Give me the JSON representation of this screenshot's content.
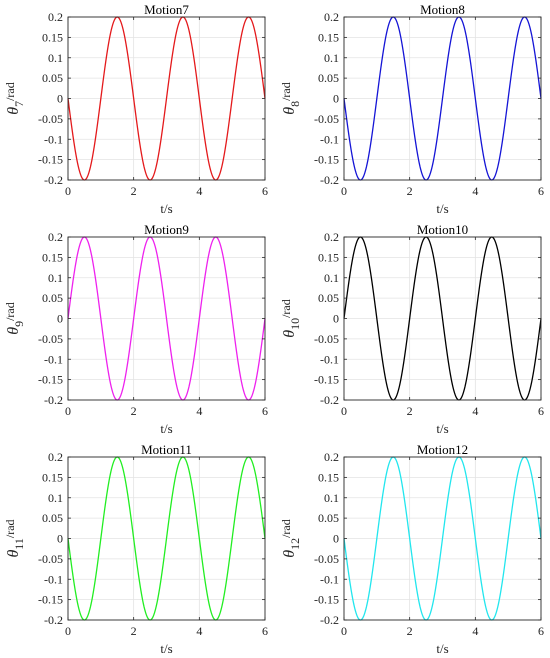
{
  "chart_data": [
    {
      "type": "line",
      "title": "Motion7",
      "xlabel": "t/s",
      "ylabel": {
        "symbol": "θ",
        "subscript": "7",
        "unit": "/rad"
      },
      "xlim": [
        0,
        6
      ],
      "ylim": [
        -0.2,
        0.2
      ],
      "xticks": [
        "0",
        "2",
        "4",
        "6"
      ],
      "yticks": [
        "-0.2",
        "-0.15",
        "-0.1",
        "-0.05",
        "0",
        "0.05",
        "0.1",
        "0.15",
        "0.2"
      ],
      "grid": true,
      "series": [
        {
          "color": "#e41a1c",
          "function": "-0.2*sin(pi*t)",
          "x": [
            0,
            0.5,
            1,
            1.5,
            2,
            2.5,
            3,
            3.5,
            4,
            4.5,
            5,
            5.5,
            6
          ],
          "y": [
            0,
            -0.2,
            0,
            0.2,
            0,
            -0.2,
            0,
            0.2,
            0,
            -0.2,
            0,
            0.2,
            0
          ]
        }
      ]
    },
    {
      "type": "line",
      "title": "Motion8",
      "xlabel": "t/s",
      "ylabel": {
        "symbol": "θ",
        "subscript": "8",
        "unit": "/rad"
      },
      "xlim": [
        0,
        6
      ],
      "ylim": [
        -0.2,
        0.2
      ],
      "xticks": [
        "0",
        "2",
        "4",
        "6"
      ],
      "yticks": [
        "-0.2",
        "-0.15",
        "-0.1",
        "-0.05",
        "0",
        "0.05",
        "0.1",
        "0.15",
        "0.2"
      ],
      "grid": true,
      "series": [
        {
          "color": "#1515d6",
          "function": "-0.2*sin(pi*t)",
          "x": [
            0,
            0.5,
            1,
            1.5,
            2,
            2.5,
            3,
            3.5,
            4,
            4.5,
            5,
            5.5,
            6
          ],
          "y": [
            0,
            -0.2,
            0,
            0.2,
            0,
            -0.2,
            0,
            0.2,
            0,
            -0.2,
            0,
            0.2,
            0
          ]
        }
      ]
    },
    {
      "type": "line",
      "title": "Motion9",
      "xlabel": "t/s",
      "ylabel": {
        "symbol": "θ",
        "subscript": "9",
        "unit": "/rad"
      },
      "xlim": [
        0,
        6
      ],
      "ylim": [
        -0.2,
        0.2
      ],
      "xticks": [
        "0",
        "2",
        "4",
        "6"
      ],
      "yticks": [
        "-0.2",
        "-0.15",
        "-0.1",
        "-0.05",
        "0",
        "0.05",
        "0.1",
        "0.15",
        "0.2"
      ],
      "grid": true,
      "series": [
        {
          "color": "#ee22ee",
          "function": "0.2*sin(pi*t)",
          "x": [
            0,
            0.5,
            1,
            1.5,
            2,
            2.5,
            3,
            3.5,
            4,
            4.5,
            5,
            5.5,
            6
          ],
          "y": [
            0,
            0.2,
            0,
            -0.2,
            0,
            0.2,
            0,
            -0.2,
            0,
            0.2,
            0,
            -0.2,
            0
          ]
        }
      ]
    },
    {
      "type": "line",
      "title": "Motion10",
      "xlabel": "t/s",
      "ylabel": {
        "symbol": "θ",
        "subscript": "10",
        "unit": "/rad"
      },
      "xlim": [
        0,
        6
      ],
      "ylim": [
        -0.2,
        0.2
      ],
      "xticks": [
        "0",
        "2",
        "4",
        "6"
      ],
      "yticks": [
        "-0.2",
        "-0.15",
        "-0.1",
        "-0.05",
        "0",
        "0.05",
        "0.1",
        "0.15",
        "0.2"
      ],
      "grid": true,
      "series": [
        {
          "color": "#000000",
          "function": "0.2*sin(pi*t)",
          "x": [
            0,
            0.5,
            1,
            1.5,
            2,
            2.5,
            3,
            3.5,
            4,
            4.5,
            5,
            5.5,
            6
          ],
          "y": [
            0,
            0.2,
            0,
            -0.2,
            0,
            0.2,
            0,
            -0.2,
            0,
            0.2,
            0,
            -0.2,
            0
          ]
        }
      ]
    },
    {
      "type": "line",
      "title": "Motion11",
      "xlabel": "t/s",
      "ylabel": {
        "symbol": "θ",
        "subscript": "11",
        "unit": "/rad"
      },
      "xlim": [
        0,
        6
      ],
      "ylim": [
        -0.2,
        0.2
      ],
      "xticks": [
        "0",
        "2",
        "4",
        "6"
      ],
      "yticks": [
        "-0.2",
        "-0.15",
        "-0.1",
        "-0.05",
        "0",
        "0.05",
        "0.1",
        "0.15",
        "0.2"
      ],
      "grid": true,
      "series": [
        {
          "color": "#22ee22",
          "function": "-0.2*sin(pi*t)",
          "x": [
            0,
            0.5,
            1,
            1.5,
            2,
            2.5,
            3,
            3.5,
            4,
            4.5,
            5,
            5.5,
            6
          ],
          "y": [
            0,
            -0.2,
            0,
            0.2,
            0,
            -0.2,
            0,
            0.2,
            0,
            -0.2,
            0,
            0.2,
            0
          ]
        }
      ]
    },
    {
      "type": "line",
      "title": "Motion12",
      "xlabel": "t/s",
      "ylabel": {
        "symbol": "θ",
        "subscript": "12",
        "unit": "/rad"
      },
      "xlim": [
        0,
        6
      ],
      "ylim": [
        -0.2,
        0.2
      ],
      "xticks": [
        "0",
        "2",
        "4",
        "6"
      ],
      "yticks": [
        "-0.2",
        "-0.15",
        "-0.1",
        "-0.05",
        "0",
        "0.05",
        "0.1",
        "0.15",
        "0.2"
      ],
      "grid": true,
      "series": [
        {
          "color": "#22e6ee",
          "function": "-0.2*sin(pi*t)",
          "x": [
            0,
            0.5,
            1,
            1.5,
            2,
            2.5,
            3,
            3.5,
            4,
            4.5,
            5,
            5.5,
            6
          ],
          "y": [
            0,
            -0.2,
            0,
            0.2,
            0,
            -0.2,
            0,
            0.2,
            0,
            -0.2,
            0,
            0.2,
            0
          ]
        }
      ]
    }
  ]
}
